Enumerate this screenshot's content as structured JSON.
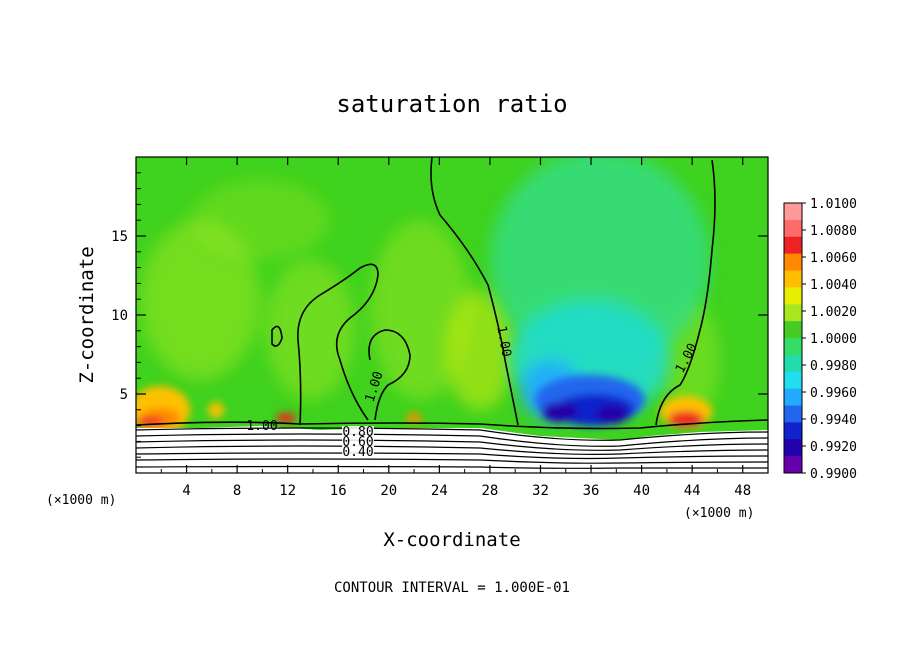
{
  "chart_data": {
    "type": "heatmap",
    "title": "saturation ratio",
    "xlabel": "X-coordinate",
    "ylabel": "Z-coordinate",
    "x_unit": "(×1000 m)",
    "x_unit_right": "(×1000 m)",
    "xlim": [
      0,
      50
    ],
    "ylim": [
      0,
      20
    ],
    "x_ticks": [
      4,
      8,
      12,
      16,
      20,
      24,
      28,
      32,
      36,
      40,
      44,
      48
    ],
    "y_ticks": [
      5,
      10,
      15
    ],
    "colorbar": {
      "levels": [
        "1.0100",
        "1.0080",
        "1.0060",
        "1.0040",
        "1.0020",
        "1.0000",
        "0.9980",
        "0.9960",
        "0.9940",
        "0.9920",
        "0.9900"
      ],
      "colors": [
        "#ff9a9a",
        "#ff6a6a",
        "#ee2222",
        "#ff8a00",
        "#ffbf00",
        "#e8ee00",
        "#a8e620",
        "#44cc22",
        "#33dd66",
        "#22ddaa",
        "#22ddee",
        "#22aaff",
        "#2266ee",
        "#1122cc",
        "#2200aa",
        "#6600aa"
      ]
    },
    "contour_labels": [
      "1.00",
      "1.00",
      "1.00",
      "1.00",
      "0.80",
      "0.60",
      "0.40"
    ],
    "footer": "CONTOUR INTERVAL = 1.000E-01"
  }
}
